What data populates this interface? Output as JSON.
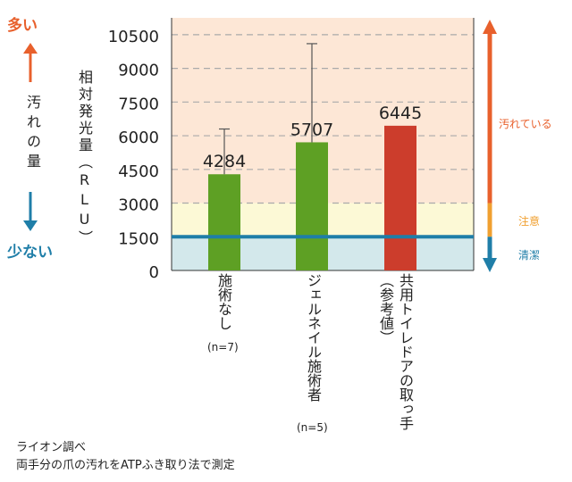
{
  "left_legend": {
    "top": "多い",
    "middle": "汚れの量",
    "bottom": "少ない",
    "top_color": "#e8602c",
    "bottom_color": "#1f7ea8"
  },
  "right_legend": {
    "dirty": "汚れている",
    "caution": "注意",
    "clean": "清潔",
    "dirty_color": "#e8602c",
    "caution_color": "#f0a030",
    "clean_color": "#1f7ea8"
  },
  "footnote": {
    "line1": "ライオン調べ",
    "line2": "両手分の爪の汚れをATPふき取り法で測定"
  },
  "chart_data": {
    "type": "bar",
    "ylabel": "相対発光量（RLU）",
    "ylim": [
      0,
      11250
    ],
    "yticks": [
      0,
      1500,
      3000,
      4500,
      6000,
      7500,
      9000,
      10500
    ],
    "threshold_line": 1500,
    "bands": [
      {
        "from": 0,
        "to": 1500,
        "color": "#d3e8eb"
      },
      {
        "from": 1500,
        "to": 3000,
        "color": "#fcf9d6"
      },
      {
        "from": 3000,
        "to": 11250,
        "color": "#fde7d6"
      }
    ],
    "categories": [
      {
        "label": "施術なし",
        "note": "(n=7)"
      },
      {
        "label": "ジェルネイル施術者",
        "note": "(n=5)"
      },
      {
        "label": "共用トイレドアの取っ手（参考値）",
        "note": ""
      }
    ],
    "values": [
      4284,
      5707,
      6445
    ],
    "value_labels": [
      "4284",
      "5707",
      "6445"
    ],
    "error_upper": [
      6300,
      10100,
      null
    ],
    "colors": [
      "#5ea024",
      "#5ea024",
      "#cc3d2c"
    ]
  }
}
